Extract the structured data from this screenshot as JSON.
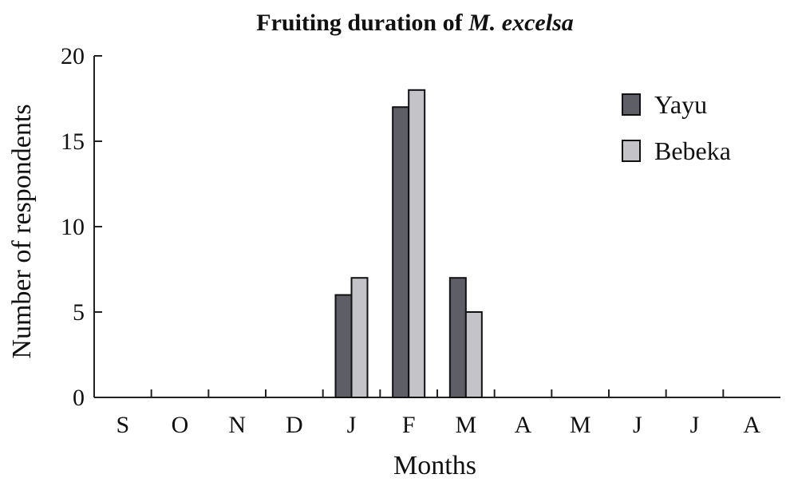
{
  "chart_data": {
    "type": "bar",
    "title": "Fruiting duration of",
    "title_italic": "M. excelsa",
    "xlabel": "Months",
    "ylabel": "Number of respondents",
    "categories": [
      "S",
      "O",
      "N",
      "D",
      "J",
      "F",
      "M",
      "A",
      "M",
      "J",
      "J",
      "A"
    ],
    "ylim": [
      0,
      20
    ],
    "yticks": [
      0,
      5,
      10,
      15,
      20
    ],
    "grid": false,
    "legend_position": "top-right",
    "series": [
      {
        "name": "Yayu",
        "color": "#5e5e66",
        "values": [
          0,
          0,
          0,
          0,
          6,
          17,
          7,
          0,
          0,
          0,
          0,
          0
        ]
      },
      {
        "name": "Bebeka",
        "color": "#c4c4c8",
        "values": [
          0,
          0,
          0,
          0,
          7,
          18,
          5,
          0,
          0,
          0,
          0,
          0
        ]
      }
    ]
  }
}
